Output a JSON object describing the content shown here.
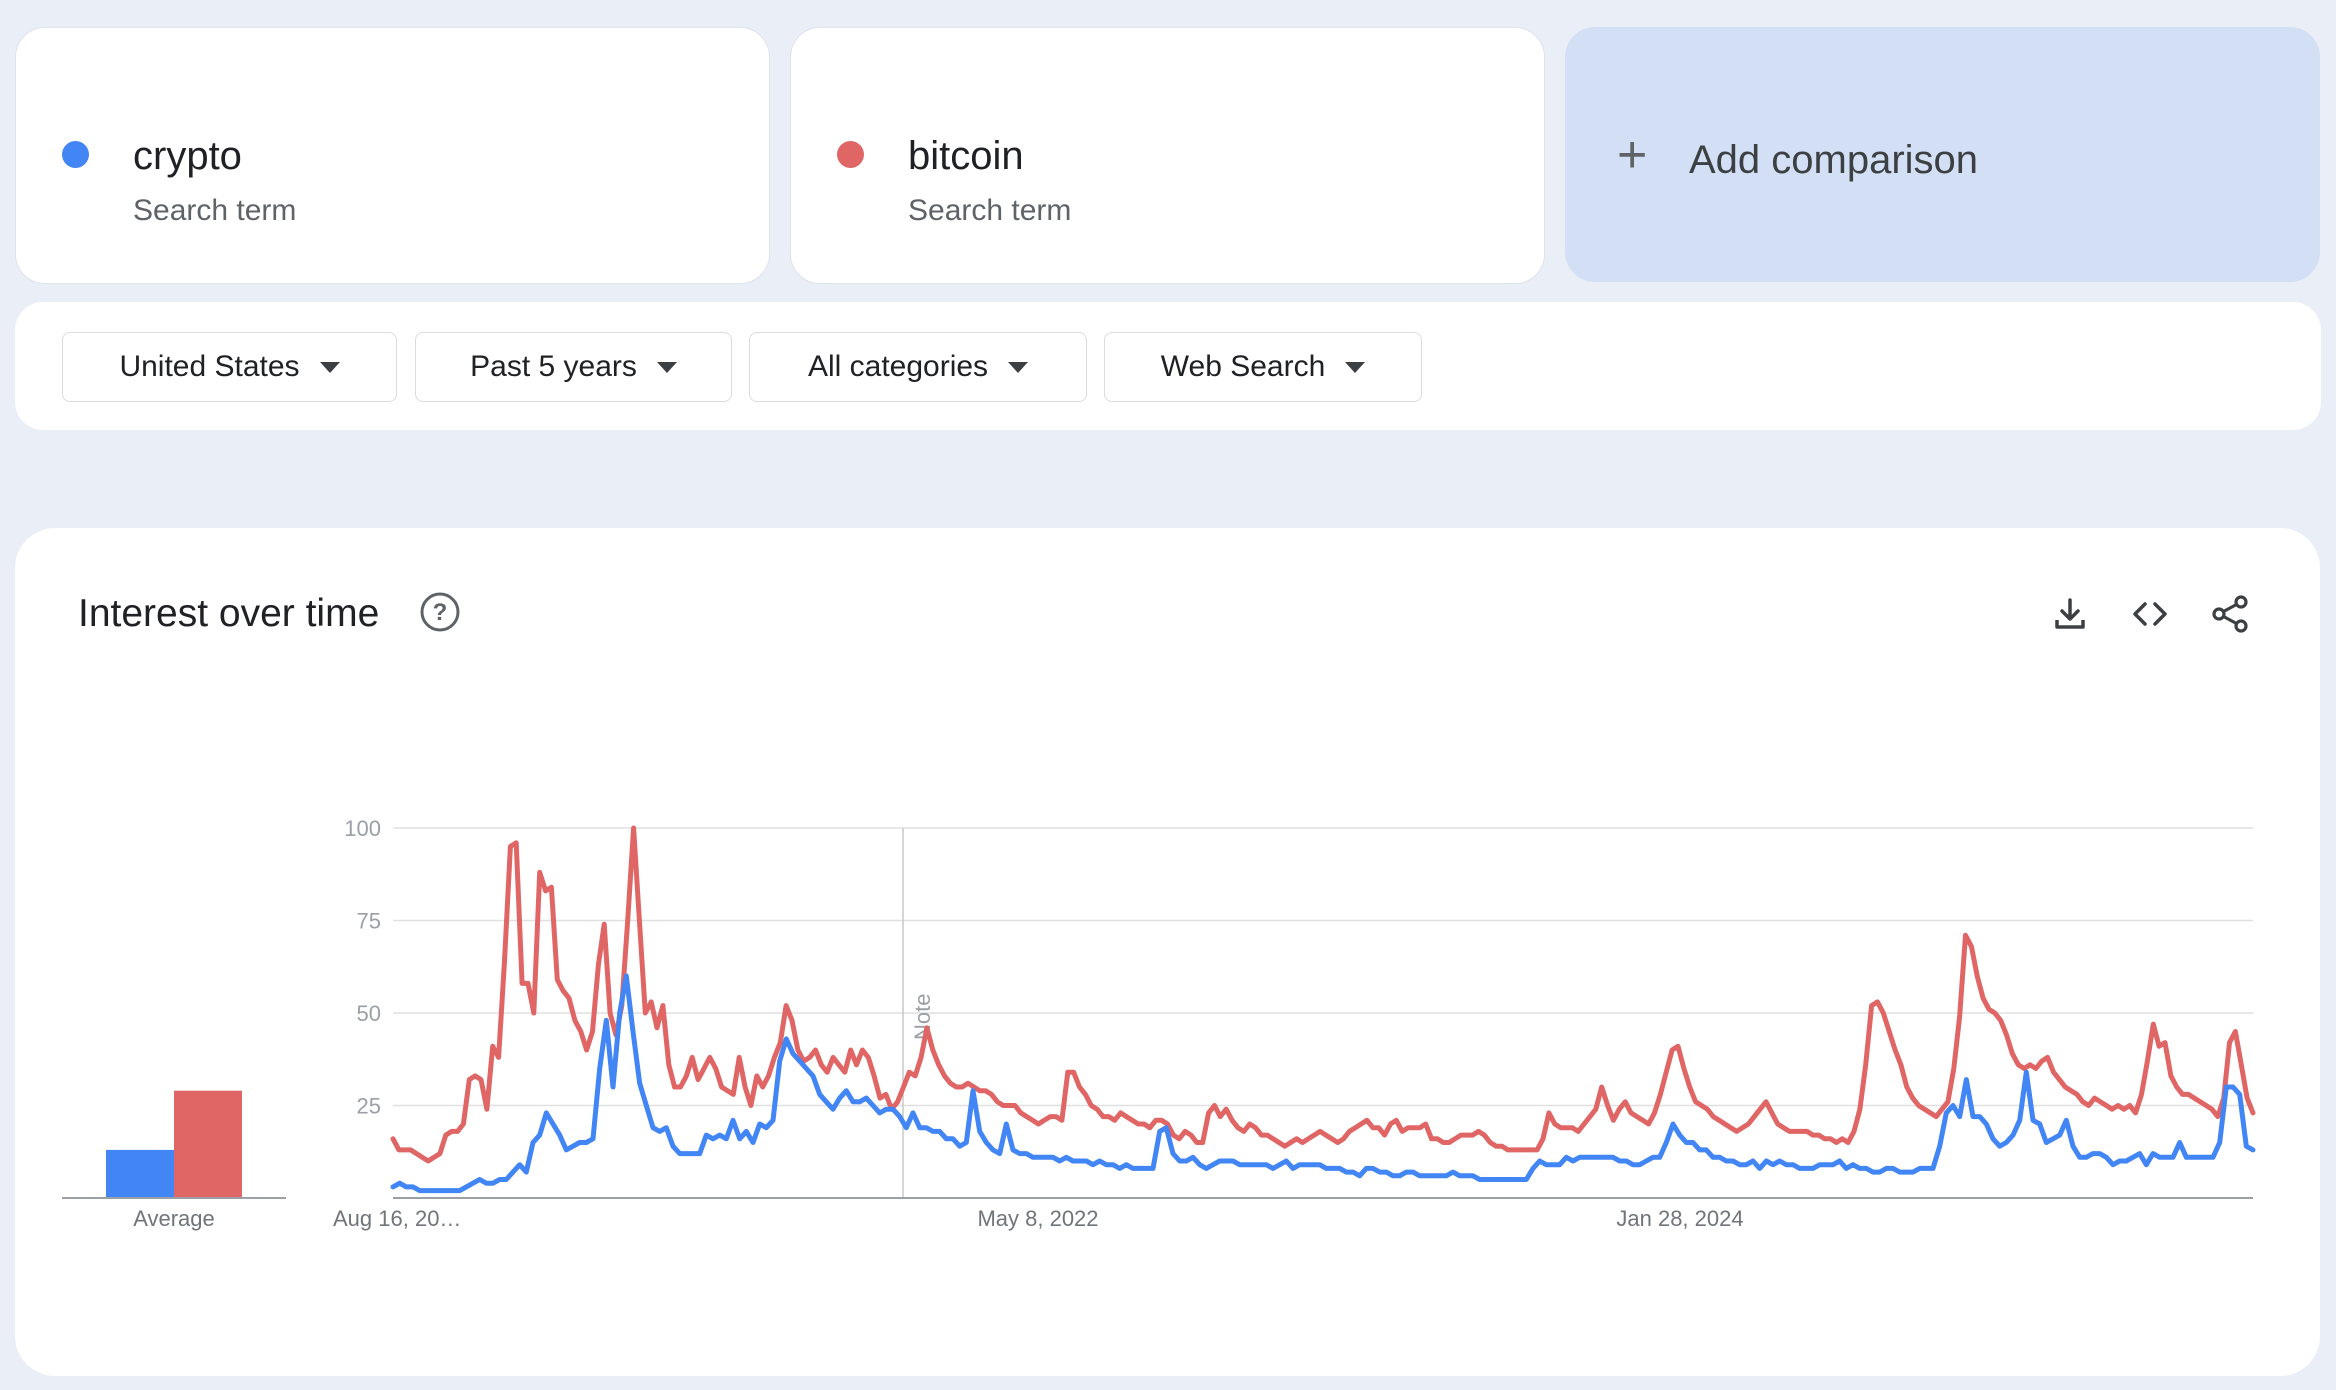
{
  "terms": [
    {
      "name": "crypto",
      "subtitle": "Search term",
      "color": "#4285f4"
    },
    {
      "name": "bitcoin",
      "subtitle": "Search term",
      "color": "#e06666"
    }
  ],
  "add_comparison": {
    "icon": "plus-icon",
    "label": "Add comparison"
  },
  "filters": {
    "region": "United States",
    "time_range": "Past 5 years",
    "category": "All categories",
    "search_type": "Web Search"
  },
  "panel": {
    "title": "Interest over time",
    "icons": [
      "help-icon",
      "download-icon",
      "embed-code-icon",
      "share-icon"
    ]
  },
  "chart_data": {
    "type": "line",
    "y_ticks": [
      "25",
      "50",
      "75",
      "100"
    ],
    "ylim": [
      0,
      100
    ],
    "grid": true,
    "x_tick_labels": [
      "Aug 16, 20…",
      "May 8, 2022",
      "Jan 28, 2024"
    ],
    "note_label": "Note",
    "average_label": "Average",
    "averages": [
      {
        "name": "crypto",
        "value": 13
      },
      {
        "name": "bitcoin",
        "value": 29
      }
    ],
    "series": [
      {
        "name": "crypto",
        "color": "#4285f4",
        "values": [
          3,
          4,
          3,
          3,
          2,
          2,
          2,
          2,
          2,
          2,
          2,
          3,
          4,
          5,
          4,
          4,
          5,
          5,
          7,
          9,
          7,
          15,
          17,
          23,
          20,
          17,
          13,
          14,
          15,
          15,
          16,
          35,
          48,
          30,
          50,
          60,
          45,
          31,
          25,
          19,
          18,
          19,
          14,
          12,
          12,
          12,
          12,
          17,
          16,
          17,
          16,
          21,
          16,
          18,
          15,
          20,
          19,
          21,
          37,
          43,
          39,
          37,
          35,
          33,
          28,
          26,
          24,
          27,
          29,
          26,
          26,
          27,
          25,
          23,
          24,
          24,
          22,
          19,
          23,
          19,
          19,
          18,
          18,
          16,
          16,
          14,
          15,
          29,
          18,
          15,
          13,
          12,
          20,
          13,
          12,
          12,
          11,
          11,
          11,
          11,
          10,
          11,
          10,
          10,
          10,
          9,
          10,
          9,
          9,
          8,
          9,
          8,
          8,
          8,
          8,
          18,
          19,
          12,
          10,
          10,
          11,
          9,
          8,
          9,
          10,
          10,
          10,
          9,
          9,
          9,
          9,
          9,
          8,
          9,
          10,
          8,
          9,
          9,
          9,
          9,
          8,
          8,
          8,
          7,
          7,
          6,
          8,
          8,
          7,
          7,
          6,
          6,
          7,
          7,
          6,
          6,
          6,
          6,
          6,
          7,
          6,
          6,
          6,
          5,
          5,
          5,
          5,
          5,
          5,
          5,
          5,
          8,
          10,
          9,
          9,
          9,
          11,
          10,
          11,
          11,
          11,
          11,
          11,
          11,
          10,
          10,
          9,
          9,
          10,
          11,
          11,
          15,
          20,
          17,
          15,
          15,
          13,
          13,
          11,
          11,
          10,
          10,
          9,
          9,
          10,
          8,
          10,
          9,
          10,
          9,
          9,
          8,
          8,
          8,
          9,
          9,
          9,
          10,
          8,
          9,
          8,
          8,
          7,
          7,
          8,
          8,
          7,
          7,
          7,
          8,
          8,
          8,
          14,
          23,
          25,
          22,
          32,
          22,
          22,
          20,
          16,
          14,
          15,
          17,
          21,
          34,
          21,
          20,
          15,
          16,
          17,
          21,
          14,
          11,
          11,
          12,
          12,
          11,
          9,
          10,
          10,
          11,
          12,
          9,
          12,
          11,
          11,
          11,
          15,
          11,
          11,
          11,
          11,
          11,
          15,
          30,
          30,
          28,
          14,
          13
        ]
      },
      {
        "name": "bitcoin",
        "color": "#e06666",
        "values": [
          16,
          13,
          13,
          13,
          12,
          11,
          10,
          11,
          12,
          17,
          18,
          18,
          20,
          32,
          33,
          32,
          24,
          41,
          38,
          64,
          95,
          96,
          58,
          58,
          50,
          88,
          83,
          84,
          59,
          56,
          54,
          48,
          45,
          40,
          45,
          63,
          74,
          50,
          44,
          52,
          75,
          100,
          75,
          50,
          53,
          46,
          52,
          36,
          30,
          30,
          33,
          38,
          32,
          35,
          38,
          35,
          30,
          29,
          28,
          38,
          30,
          25,
          33,
          30,
          33,
          38,
          42,
          52,
          48,
          40,
          37,
          38,
          40,
          36,
          34,
          38,
          36,
          34,
          40,
          36,
          40,
          38,
          33,
          27,
          28,
          24,
          26,
          30,
          34,
          33,
          38,
          46,
          40,
          36,
          33,
          31,
          30,
          30,
          31,
          30,
          29,
          29,
          28,
          26,
          25,
          25,
          25,
          23,
          22,
          21,
          20,
          21,
          22,
          22,
          21,
          34,
          34,
          30,
          28,
          25,
          24,
          22,
          22,
          21,
          23,
          22,
          21,
          20,
          20,
          19,
          21,
          21,
          20,
          17,
          16,
          18,
          17,
          15,
          15,
          23,
          25,
          22,
          24,
          21,
          19,
          18,
          20,
          19,
          17,
          17,
          16,
          15,
          14,
          15,
          16,
          15,
          16,
          17,
          18,
          17,
          16,
          15,
          16,
          18,
          19,
          20,
          21,
          19,
          19,
          17,
          20,
          21,
          18,
          19,
          19,
          19,
          20,
          16,
          16,
          15,
          15,
          16,
          17,
          17,
          17,
          18,
          17,
          15,
          14,
          14,
          13,
          13,
          13,
          13,
          13,
          13,
          16,
          23,
          20,
          19,
          19,
          19,
          18,
          20,
          22,
          24,
          30,
          25,
          21,
          24,
          26,
          23,
          22,
          21,
          20,
          23,
          28,
          34,
          40,
          41,
          35,
          30,
          26,
          25,
          24,
          22,
          21,
          20,
          19,
          18,
          19,
          20,
          22,
          24,
          26,
          23,
          20,
          19,
          18,
          18,
          18,
          18,
          17,
          17,
          16,
          16,
          15,
          16,
          15,
          18,
          24,
          36,
          52,
          53,
          50,
          45,
          40,
          36,
          30,
          27,
          25,
          24,
          23,
          22,
          24,
          26,
          35,
          49,
          71,
          68,
          60,
          54,
          51,
          50,
          48,
          44,
          39,
          36,
          35,
          36,
          35,
          37,
          38,
          34,
          32,
          30,
          29,
          28,
          26,
          25,
          27,
          26,
          25,
          24,
          25,
          24,
          25,
          23,
          28,
          37,
          47,
          41,
          42,
          33,
          30,
          28,
          28,
          27,
          26,
          25,
          24,
          22,
          27,
          42,
          45,
          36,
          27,
          23
        ]
      }
    ]
  }
}
